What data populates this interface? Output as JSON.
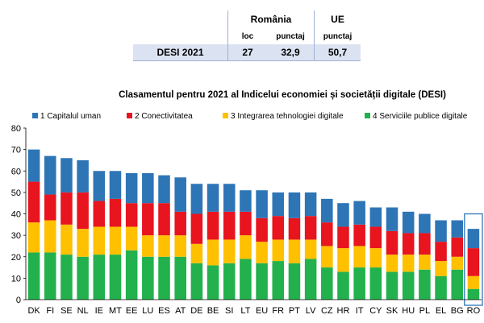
{
  "table": {
    "group_romania": "România",
    "group_eu": "UE",
    "col_rank": "loc",
    "col_score": "punctaj",
    "col_eu_score": "punctaj",
    "row_label": "DESI 2021",
    "rank": "27",
    "score": "32,9",
    "eu_score": "50,7"
  },
  "colors": {
    "s1": "#2e75b6",
    "s2": "#e8141e",
    "s3": "#ffc000",
    "s4": "#22b14c",
    "highlight": "#2e75b6"
  },
  "chart_data": {
    "type": "bar",
    "stacked": true,
    "title": "Clasamentul pentru 2021 al Indicelui economiei și societății digitale (DESI)",
    "xlabel": "",
    "ylabel": "",
    "ylim": [
      0,
      80
    ],
    "yticks": [
      0,
      10,
      20,
      30,
      40,
      50,
      60,
      70,
      80
    ],
    "grid": false,
    "legend_position": "top",
    "highlight_category": "RO",
    "categories": [
      "DK",
      "FI",
      "SE",
      "NL",
      "IE",
      "MT",
      "EE",
      "LU",
      "ES",
      "AT",
      "DE",
      "BE",
      "SI",
      "LT",
      "EU",
      "FR",
      "PT",
      "LV",
      "CZ",
      "HR",
      "IT",
      "CY",
      "SK",
      "HU",
      "PL",
      "EL",
      "BG",
      "RO"
    ],
    "series": [
      {
        "name": "4 Serviciile publice digitale",
        "values": [
          22,
          22,
          21,
          20,
          21,
          21,
          23,
          20,
          20,
          20,
          17,
          16,
          17,
          19,
          17,
          18,
          17,
          19,
          15,
          13,
          15,
          15,
          13,
          13,
          14,
          11,
          14,
          5
        ]
      },
      {
        "name": "3 Integrarea tehnologiei digitale",
        "values": [
          14,
          15,
          14,
          13,
          13,
          13,
          11,
          10,
          10,
          10,
          9,
          12,
          11,
          11,
          10,
          10,
          11,
          9,
          10,
          11,
          10,
          9,
          8,
          8,
          7,
          7,
          6,
          6
        ]
      },
      {
        "name": "2 Conectivitatea",
        "values": [
          19,
          12,
          15,
          17,
          12,
          13,
          11,
          15,
          15,
          11,
          14,
          13,
          13,
          11,
          11,
          11,
          10,
          11,
          11,
          10,
          10,
          10,
          11,
          10,
          10,
          9,
          9,
          13
        ]
      },
      {
        "name": "1 Capitalul uman",
        "values": [
          15,
          18,
          16,
          15,
          14,
          13,
          14,
          14,
          13,
          16,
          14,
          13,
          13,
          10,
          13,
          11,
          12,
          11,
          11,
          11,
          11,
          9,
          11,
          10,
          9,
          10,
          8,
          9
        ]
      }
    ]
  }
}
